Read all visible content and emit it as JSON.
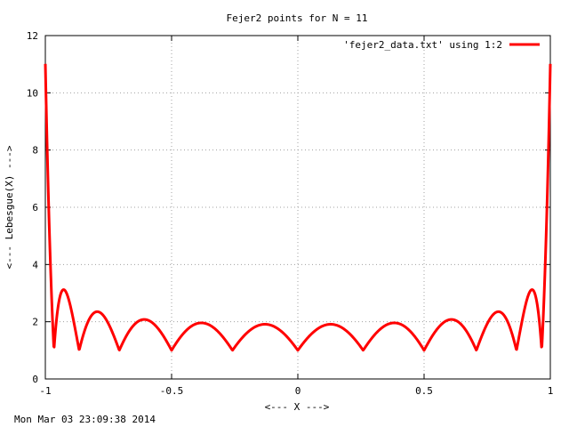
{
  "timestamp": "Mon Mar 03 23:09:38 2014",
  "chart_data": {
    "type": "line",
    "title": "Fejer2 points for N = 11",
    "xlabel": "<--- X --->",
    "ylabel": "<--- Lebesgue(X) --->",
    "xlim": [
      -1,
      1
    ],
    "ylim": [
      0,
      12
    ],
    "xticks": [
      -1,
      -0.5,
      0,
      0.5,
      1
    ],
    "xtick_labels": [
      "-1",
      "-0.5",
      "0",
      "0.5",
      "1"
    ],
    "yticks": [
      0,
      2,
      4,
      6,
      8,
      10,
      12
    ],
    "ytick_labels": [
      "0",
      "2",
      "4",
      "6",
      "8",
      "10",
      "12"
    ],
    "grid": true,
    "legend_position": "top-right",
    "series": [
      {
        "name": "'fejer2_data.txt' using 1:2",
        "color": "#ff0000",
        "nodes": [
          -0.9659,
          -0.866,
          -0.7071,
          -0.5,
          -0.2588,
          0,
          0.2588,
          0.5,
          0.7071,
          0.866,
          0.9659
        ],
        "x": [
          -1,
          -0.9659,
          -0.866,
          -0.7071,
          -0.5,
          -0.2588,
          0,
          0.2588,
          0.5,
          0.7071,
          0.866,
          0.9659,
          1
        ],
        "y": [
          11.0,
          1.25,
          1.08,
          1.03,
          1.0,
          1.02,
          1.0,
          1.02,
          1.0,
          1.03,
          1.08,
          1.25,
          11.0
        ],
        "peaks_x": [
          -0.9296,
          -0.7963,
          -0.6094,
          -0.3818,
          -0.1297,
          0.1297,
          0.3818,
          0.6094,
          0.7963,
          0.9296
        ],
        "peaks_y": [
          3.1,
          2.35,
          2.1,
          1.95,
          1.9,
          1.9,
          1.95,
          2.1,
          2.35,
          3.1
        ]
      }
    ]
  }
}
